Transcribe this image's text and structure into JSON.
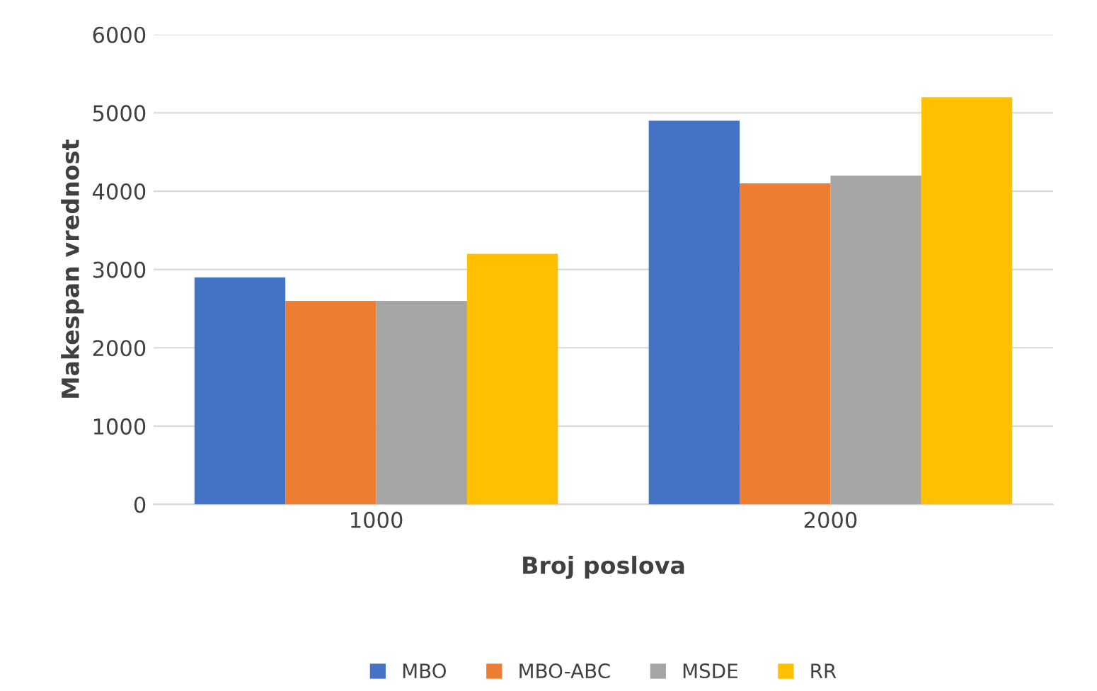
{
  "chart_data": {
    "type": "bar",
    "xlabel": "Broj poslova",
    "ylabel": "Makespan vrednost",
    "categories": [
      "1000",
      "2000"
    ],
    "series": [
      {
        "name": "MBO",
        "color": "#4472c4",
        "values": [
          2900,
          4900
        ]
      },
      {
        "name": "MBO-ABC",
        "color": "#ed7d31",
        "values": [
          2600,
          4100
        ]
      },
      {
        "name": "MSDE",
        "color": "#a5a5a5",
        "values": [
          2600,
          4200
        ]
      },
      {
        "name": "RR",
        "color": "#ffc000",
        "values": [
          3200,
          5200
        ]
      }
    ],
    "ylim": [
      0,
      6000
    ],
    "yticks": [
      0,
      1000,
      2000,
      3000,
      4000,
      5000,
      6000
    ],
    "grid": "y",
    "legend": "bottom"
  }
}
